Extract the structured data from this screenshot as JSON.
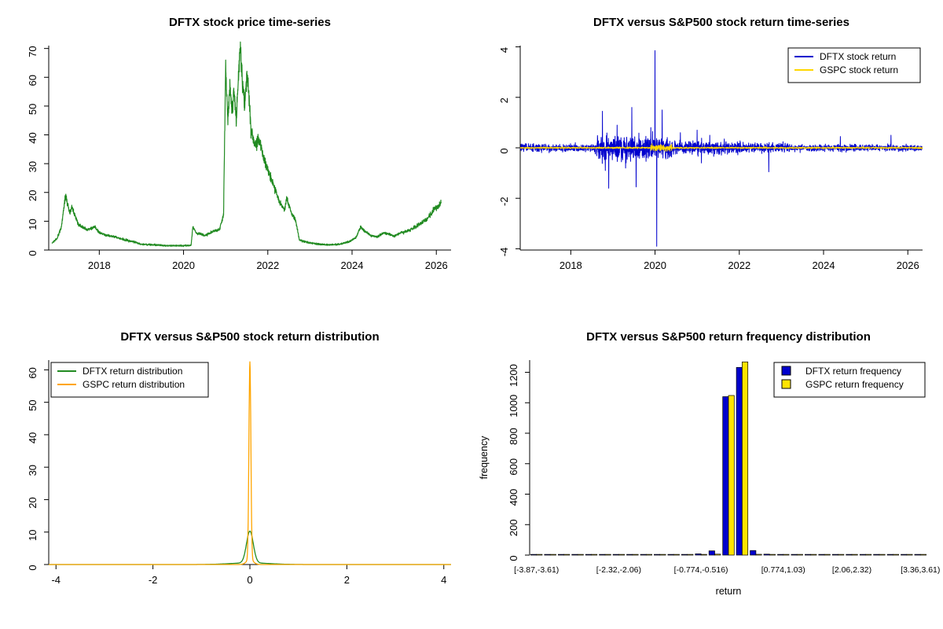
{
  "chart_data": [
    {
      "type": "line",
      "title": "DFTX stock price time-series",
      "xlim": [
        2016.8,
        2026.35
      ],
      "ylim": [
        0,
        71
      ],
      "x_ticks": [
        {
          "v": 2018,
          "l": "2018"
        },
        {
          "v": 2020,
          "l": "2020"
        },
        {
          "v": 2022,
          "l": "2022"
        },
        {
          "v": 2024,
          "l": "2024"
        },
        {
          "v": 2026,
          "l": "2026"
        }
      ],
      "y_ticks": [
        {
          "v": 0,
          "l": "0"
        },
        {
          "v": 10,
          "l": "10"
        },
        {
          "v": 20,
          "l": "20"
        },
        {
          "v": 30,
          "l": "30"
        },
        {
          "v": 40,
          "l": "40"
        },
        {
          "v": 50,
          "l": "50"
        },
        {
          "v": 60,
          "l": "60"
        },
        {
          "v": 70,
          "l": "70"
        }
      ],
      "series": [
        {
          "name": "DFTX stock price",
          "color": "#228B22",
          "seed": 42,
          "keypoints": [
            [
              2016.88,
              2.5
            ],
            [
              2017.0,
              4
            ],
            [
              2017.1,
              8
            ],
            [
              2017.2,
              19
            ],
            [
              2017.3,
              13
            ],
            [
              2017.35,
              15
            ],
            [
              2017.5,
              9
            ],
            [
              2017.7,
              7
            ],
            [
              2017.9,
              8
            ],
            [
              2018.0,
              6
            ],
            [
              2018.2,
              5
            ],
            [
              2018.4,
              4.5
            ],
            [
              2018.6,
              3.5
            ],
            [
              2018.8,
              3
            ],
            [
              2019.0,
              2
            ],
            [
              2019.3,
              1.8
            ],
            [
              2019.6,
              1.5
            ],
            [
              2019.9,
              1.5
            ],
            [
              2020.1,
              1.5
            ],
            [
              2020.18,
              1.8
            ],
            [
              2020.22,
              8
            ],
            [
              2020.3,
              6
            ],
            [
              2020.5,
              5
            ],
            [
              2020.7,
              6.5
            ],
            [
              2020.85,
              7
            ],
            [
              2020.95,
              12
            ],
            [
              2021.0,
              65
            ],
            [
              2021.05,
              45
            ],
            [
              2021.1,
              58
            ],
            [
              2021.15,
              48
            ],
            [
              2021.2,
              55
            ],
            [
              2021.25,
              45
            ],
            [
              2021.3,
              60
            ],
            [
              2021.35,
              70
            ],
            [
              2021.4,
              58
            ],
            [
              2021.45,
              50
            ],
            [
              2021.5,
              62
            ],
            [
              2021.55,
              55
            ],
            [
              2021.6,
              42
            ],
            [
              2021.7,
              36
            ],
            [
              2021.8,
              38
            ],
            [
              2021.9,
              32
            ],
            [
              2022.0,
              28
            ],
            [
              2022.1,
              24
            ],
            [
              2022.2,
              20
            ],
            [
              2022.3,
              16
            ],
            [
              2022.4,
              14
            ],
            [
              2022.45,
              18
            ],
            [
              2022.55,
              13
            ],
            [
              2022.65,
              11
            ],
            [
              2022.75,
              3.5
            ],
            [
              2022.9,
              2.8
            ],
            [
              2023.1,
              2.2
            ],
            [
              2023.4,
              1.8
            ],
            [
              2023.7,
              2
            ],
            [
              2023.95,
              3
            ],
            [
              2024.1,
              4.5
            ],
            [
              2024.2,
              8
            ],
            [
              2024.3,
              6.5
            ],
            [
              2024.45,
              5
            ],
            [
              2024.6,
              4.5
            ],
            [
              2024.75,
              6
            ],
            [
              2024.9,
              5.5
            ],
            [
              2025.0,
              4.8
            ],
            [
              2025.15,
              6
            ],
            [
              2025.3,
              6.5
            ],
            [
              2025.45,
              7.5
            ],
            [
              2025.6,
              9
            ],
            [
              2025.75,
              10.5
            ],
            [
              2025.85,
              12
            ],
            [
              2025.95,
              14.5
            ],
            [
              2026.05,
              15
            ],
            [
              2026.12,
              17
            ]
          ]
        }
      ]
    },
    {
      "type": "returns",
      "title": "DFTX versus S&P500 stock return time-series",
      "xlim": [
        2016.8,
        2026.35
      ],
      "ylim": [
        -4.05,
        4.05
      ],
      "x_ticks": [
        {
          "v": 2018,
          "l": "2018"
        },
        {
          "v": 2020,
          "l": "2020"
        },
        {
          "v": 2022,
          "l": "2022"
        },
        {
          "v": 2024,
          "l": "2024"
        },
        {
          "v": 2026,
          "l": "2026"
        }
      ],
      "y_ticks": [
        {
          "v": -4,
          "l": "-4"
        },
        {
          "v": -2,
          "l": "-2"
        },
        {
          "v": 0,
          "l": "0"
        },
        {
          "v": 2,
          "l": "2"
        },
        {
          "v": 4,
          "l": "4"
        }
      ],
      "legend": {
        "position": "top-right",
        "entries": [
          {
            "label": "DFTX stock return",
            "color": "#0000CD"
          },
          {
            "label": "GSPC stock return",
            "color": "#FFD700"
          }
        ]
      },
      "series": [
        {
          "name": "DFTX stock return",
          "color": "#0000CD",
          "seed": 7,
          "base_std": 0.07,
          "noise_segments": [
            {
              "from": 2018.6,
              "to": 2020.4,
              "std": 0.22
            },
            {
              "from": 2020.4,
              "to": 2022.1,
              "std": 0.13
            },
            {
              "from": 2022.1,
              "to": 2023.2,
              "std": 0.09
            },
            {
              "from": 2023.2,
              "to": 2026.3,
              "std": 0.06
            }
          ],
          "spikes": [
            [
              2018.75,
              1.45
            ],
            [
              2018.82,
              -0.9
            ],
            [
              2018.9,
              -1.6
            ],
            [
              2019.1,
              0.9
            ],
            [
              2019.3,
              -0.8
            ],
            [
              2019.45,
              1.6
            ],
            [
              2019.55,
              -1.55
            ],
            [
              2019.9,
              0.8
            ],
            [
              2020.0,
              3.85
            ],
            [
              2020.04,
              -3.9
            ],
            [
              2020.17,
              1.5
            ],
            [
              2020.6,
              0.6
            ],
            [
              2021.0,
              0.7
            ],
            [
              2021.1,
              -0.6
            ],
            [
              2021.3,
              0.5
            ],
            [
              2022.7,
              -0.95
            ],
            [
              2024.4,
              0.45
            ],
            [
              2025.6,
              0.5
            ]
          ]
        },
        {
          "name": "GSPC stock return",
          "color": "#FFD700",
          "seed": 11,
          "base_std": 0.015,
          "noise_segments": [
            {
              "from": 2019.9,
              "to": 2020.4,
              "std": 0.06
            }
          ],
          "spikes": []
        }
      ]
    },
    {
      "type": "density",
      "title": "DFTX versus S&P500 stock return distribution",
      "xlim": [
        -4.15,
        4.15
      ],
      "ylim": [
        0,
        63
      ],
      "x_ticks": [
        {
          "v": -4,
          "l": "-4"
        },
        {
          "v": -2,
          "l": "-2"
        },
        {
          "v": 0,
          "l": "0"
        },
        {
          "v": 2,
          "l": "2"
        },
        {
          "v": 4,
          "l": "4"
        }
      ],
      "y_ticks": [
        {
          "v": 0,
          "l": "0"
        },
        {
          "v": 10,
          "l": "10"
        },
        {
          "v": 20,
          "l": "20"
        },
        {
          "v": 30,
          "l": "30"
        },
        {
          "v": 40,
          "l": "40"
        },
        {
          "v": 50,
          "l": "50"
        },
        {
          "v": 60,
          "l": "60"
        }
      ],
      "legend": {
        "position": "top-left",
        "entries": [
          {
            "label": "DFTX return distribution",
            "color": "#228B22"
          },
          {
            "label": "GSPC return distribution",
            "color": "#FFA500"
          }
        ]
      },
      "series": [
        {
          "name": "DFTX return distribution",
          "color": "#228B22",
          "peaks": [
            {
              "h": 9.8,
              "s": 0.07
            },
            {
              "h": 0.5,
              "s": 0.4
            }
          ]
        },
        {
          "name": "GSPC return distribution",
          "color": "#FFA500",
          "peaks": [
            {
              "h": 61,
              "s": 0.02
            },
            {
              "h": 1.5,
              "s": 0.07
            }
          ]
        }
      ]
    },
    {
      "type": "bars",
      "title": "DFTX versus S&P500 return frequency distribution",
      "xlabel": "return",
      "ylabel": "frequency",
      "xlim": [
        0,
        29
      ],
      "ylim": [
        0,
        1280
      ],
      "y_ticks": [
        {
          "v": 0,
          "l": "0"
        },
        {
          "v": 200,
          "l": "200"
        },
        {
          "v": 400,
          "l": "400"
        },
        {
          "v": 600,
          "l": "600"
        },
        {
          "v": 800,
          "l": "800"
        },
        {
          "v": 1000,
          "l": "1000"
        },
        {
          "v": 1200,
          "l": "1200"
        }
      ],
      "x_tick_labels": [
        {
          "index": 0,
          "label": "[-3.87,-3.61)"
        },
        {
          "index": 6,
          "label": "[-2.32,-2.06)"
        },
        {
          "index": 12,
          "label": "[-0.774,-0.516)"
        },
        {
          "index": 18,
          "label": "[0.774,1.03)"
        },
        {
          "index": 23,
          "label": "[2.06,2.32)"
        },
        {
          "index": 28,
          "label": "[3.36,3.61)"
        }
      ],
      "legend": {
        "position": "top-right",
        "entries": [
          {
            "label": "DFTX return frequency",
            "color": "#0000CD"
          },
          {
            "label": "GSPC return frequency",
            "color": "#FFE400"
          }
        ]
      },
      "series": [
        {
          "name": "DFTX return frequency",
          "color": "#0000CD",
          "values": [
            1,
            0,
            1,
            0,
            1,
            1,
            2,
            1,
            1,
            2,
            2,
            4,
            8,
            28,
            1040,
            1232,
            30,
            6,
            3,
            2,
            1,
            1,
            1,
            1,
            0,
            1,
            0,
            0,
            1
          ]
        },
        {
          "name": "GSPC return frequency",
          "color": "#FFE400",
          "values": [
            0,
            0,
            0,
            0,
            0,
            0,
            0,
            0,
            0,
            0,
            0,
            0,
            1,
            6,
            1048,
            1268,
            5,
            1,
            0,
            0,
            0,
            0,
            0,
            0,
            0,
            0,
            0,
            0,
            0
          ]
        }
      ]
    }
  ]
}
